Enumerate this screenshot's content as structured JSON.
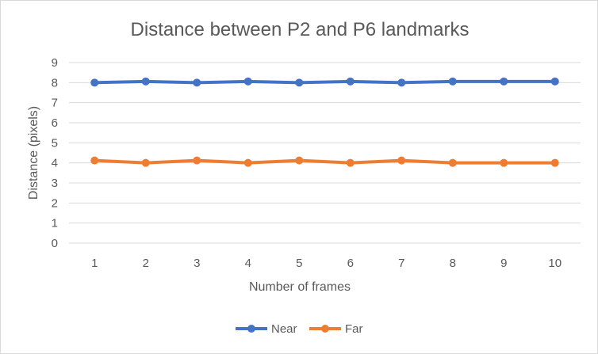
{
  "chart_data": {
    "type": "line",
    "title": "Distance between P2 and P6 landmarks",
    "xlabel": "Number of frames",
    "ylabel": "Distance (pixels)",
    "categories": [
      "1",
      "2",
      "3",
      "4",
      "5",
      "6",
      "7",
      "8",
      "9",
      "10"
    ],
    "ylim": [
      0,
      9
    ],
    "yticks": [
      "0",
      "1",
      "2",
      "3",
      "4",
      "5",
      "6",
      "7",
      "8",
      "9"
    ],
    "grid": true,
    "legend": "bottom",
    "series": [
      {
        "name": "Near",
        "color": "#4472c4",
        "values": [
          8.0,
          8.06,
          8.0,
          8.06,
          8.0,
          8.06,
          8.0,
          8.06,
          8.06,
          8.06
        ]
      },
      {
        "name": "Far",
        "color": "#ed7d31",
        "values": [
          4.12,
          4.0,
          4.12,
          4.0,
          4.12,
          4.0,
          4.12,
          4.0,
          4.0,
          4.0
        ]
      }
    ]
  }
}
